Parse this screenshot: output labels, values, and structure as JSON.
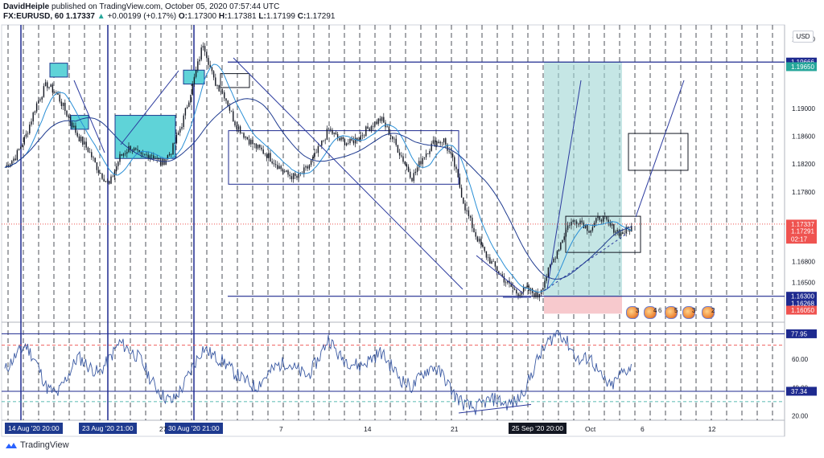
{
  "header": {
    "author": "DavidHeiple",
    "published": "published on TradingView.com, October 05, 2020 07:57:44 UTC",
    "symbol": "FX:EURUSD, 60",
    "last": "1.17337",
    "change_arrow": "▲",
    "change": "+0.00199 (+0.17%)",
    "ohlc_prefix_o": "O:",
    "open": "1.17300",
    "ohlc_prefix_h": "H:",
    "high": "1.17381",
    "ohlc_prefix_l": "L:",
    "low": "1.17199",
    "ohlc_prefix_c": "C:",
    "close": "1.17291"
  },
  "currency_button": "USD",
  "price_axis": {
    "ticks": [
      "1.20000",
      "1.19000",
      "1.18600",
      "1.18200",
      "1.17800",
      "1.16800",
      "1.16500"
    ],
    "tags": [
      {
        "label": "1.19666",
        "kind": "line",
        "color": "#1e2a8f"
      },
      {
        "label": "1.19650",
        "kind": "fib",
        "color": "#26a69a"
      },
      {
        "label": "1.17337",
        "kind": "price",
        "color": "#ef5350"
      },
      {
        "label": "1.17291",
        "kind": "price2",
        "color": "#ef5350"
      },
      {
        "label": "02:17",
        "kind": "timer",
        "color": "#ef5350"
      },
      {
        "label": "1.16300",
        "kind": "line",
        "color": "#1e2a8f"
      },
      {
        "label": "1.16268",
        "kind": "low",
        "color": "#1e2a8f"
      },
      {
        "label": "1.16050",
        "kind": "stop",
        "color": "#ef5350"
      }
    ]
  },
  "rsi_axis": {
    "ticks": [
      "60.00",
      "40.00",
      "20.00"
    ],
    "tags": [
      {
        "label": "77.95",
        "color": "#1e2a8f"
      },
      {
        "label": "37.34",
        "color": "#1e2a8f"
      }
    ]
  },
  "time_axis": {
    "badges": [
      "14 Aug '20  20:00",
      "23 Aug '20  21:00",
      "30 Aug '20  21:00",
      "25 Sep '20  20:00"
    ],
    "labels": [
      "27",
      "7",
      "14",
      "21",
      "Oct",
      "6",
      "12"
    ]
  },
  "events": [
    "3",
    "4",
    "6",
    "5",
    "3",
    "2"
  ],
  "footer": {
    "brand": "TradingView"
  },
  "colors": {
    "candle": "#131722",
    "ma_fast": "#2a8fd6",
    "ma_slow": "#1e3a8f",
    "drawing": "#2b3a9e",
    "consolidation": "#5fd3d8",
    "target_zone": "#9ed6d3",
    "stop_zone": "#f7c9cd",
    "rsi": "#3b5aa3"
  },
  "chart_data": [
    {
      "type": "candlestick",
      "title": "",
      "symbol": "FX:EURUSD",
      "interval": "60",
      "y_range": [
        1.1595,
        1.202
      ],
      "x_dates": [
        "14 Aug",
        "23 Aug",
        "27",
        "30 Aug",
        "7",
        "14",
        "21",
        "25 Sep",
        "Oct",
        "6",
        "12"
      ],
      "approx_close_path": [
        1.1815,
        1.183,
        1.186,
        1.1905,
        1.1935,
        1.192,
        1.189,
        1.186,
        1.184,
        1.181,
        1.179,
        1.183,
        1.1845,
        1.183,
        1.1835,
        1.182,
        1.184,
        1.188,
        1.1935,
        1.1995,
        1.194,
        1.192,
        1.188,
        1.186,
        1.1845,
        1.1835,
        1.182,
        1.1805,
        1.18,
        1.1815,
        1.184,
        1.187,
        1.1855,
        1.185,
        1.186,
        1.1875,
        1.1885,
        1.186,
        1.183,
        1.18,
        1.183,
        1.185,
        1.1855,
        1.182,
        1.176,
        1.172,
        1.169,
        1.167,
        1.165,
        1.1635,
        1.164,
        1.163,
        1.1665,
        1.17,
        1.1735,
        1.174,
        1.1725,
        1.1745,
        1.173,
        1.172,
        1.1729
      ],
      "horizontal_lines": [
        1.19666,
        1.163
      ],
      "last_price": 1.17337
    },
    {
      "type": "line",
      "title": "",
      "y_range": [
        18,
        85
      ],
      "levels": [
        77.95,
        37.34
      ],
      "approx_values": [
        52,
        62,
        70,
        58,
        40,
        35,
        48,
        62,
        55,
        50,
        60,
        72,
        66,
        60,
        45,
        35,
        30,
        40,
        55,
        68,
        62,
        58,
        50,
        45,
        40,
        48,
        55,
        58,
        52,
        48,
        60,
        75,
        62,
        58,
        55,
        60,
        65,
        55,
        45,
        40,
        50,
        55,
        48,
        35,
        28,
        25,
        30,
        32,
        28,
        30,
        42,
        60,
        72,
        80,
        70,
        58,
        62,
        48,
        40,
        50,
        55
      ]
    }
  ]
}
